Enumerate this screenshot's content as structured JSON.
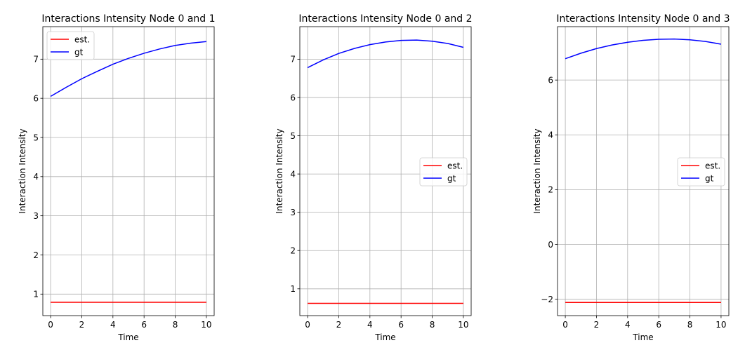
{
  "chart_data": [
    {
      "type": "line",
      "title": "Interactions Intensity Node 0 and 1",
      "xlabel": "Time",
      "ylabel": "Interaction Intensity",
      "xlim": [
        -0.5,
        10.5
      ],
      "ylim": [
        0.45,
        7.83
      ],
      "xticks": [
        0,
        2,
        4,
        6,
        8,
        10
      ],
      "yticks": [
        1,
        2,
        3,
        4,
        5,
        6,
        7
      ],
      "grid": true,
      "legend": "upper-left",
      "x": [
        0,
        1,
        2,
        3,
        4,
        5,
        6,
        7,
        8,
        9,
        10
      ],
      "series": [
        {
          "name": "est.",
          "color": "#ff0000",
          "values": [
            0.79,
            0.79,
            0.79,
            0.79,
            0.79,
            0.79,
            0.79,
            0.79,
            0.79,
            0.79,
            0.79
          ]
        },
        {
          "name": "gt",
          "color": "#0000ff",
          "values": [
            6.05,
            6.28,
            6.5,
            6.69,
            6.87,
            7.02,
            7.15,
            7.26,
            7.35,
            7.41,
            7.45
          ]
        }
      ]
    },
    {
      "type": "line",
      "title": "Interactions Intensity Node 0 and 2",
      "xlabel": "Time",
      "ylabel": "Interaction Intensity",
      "xlim": [
        -0.5,
        10.5
      ],
      "ylim": [
        0.3,
        7.85
      ],
      "xticks": [
        0,
        2,
        4,
        6,
        8,
        10
      ],
      "yticks": [
        1,
        2,
        3,
        4,
        5,
        6,
        7
      ],
      "grid": true,
      "legend": "center-right",
      "x": [
        0,
        1,
        2,
        3,
        4,
        5,
        6,
        7,
        8,
        9,
        10
      ],
      "series": [
        {
          "name": "est.",
          "color": "#ff0000",
          "values": [
            0.62,
            0.62,
            0.62,
            0.62,
            0.62,
            0.62,
            0.62,
            0.62,
            0.62,
            0.62,
            0.62
          ]
        },
        {
          "name": "gt",
          "color": "#0000ff",
          "values": [
            6.78,
            6.98,
            7.15,
            7.28,
            7.38,
            7.45,
            7.49,
            7.5,
            7.47,
            7.41,
            7.31
          ]
        }
      ]
    },
    {
      "type": "line",
      "title": "Interactions Intensity Node 0 and 3",
      "xlabel": "Time",
      "ylabel": "Interaction Intensity",
      "xlim": [
        -0.5,
        10.5
      ],
      "ylim": [
        -2.6,
        7.95
      ],
      "xticks": [
        0,
        2,
        4,
        6,
        8,
        10
      ],
      "yticks": [
        -2,
        0,
        2,
        4,
        6
      ],
      "ytick_labels": [
        "−2",
        "0",
        "2",
        "4",
        "6"
      ],
      "grid": true,
      "legend": "center-right",
      "x": [
        0,
        1,
        2,
        3,
        4,
        5,
        6,
        7,
        8,
        9,
        10
      ],
      "series": [
        {
          "name": "est.",
          "color": "#ff0000",
          "values": [
            -2.12,
            -2.12,
            -2.12,
            -2.12,
            -2.12,
            -2.12,
            -2.12,
            -2.12,
            -2.12,
            -2.12,
            -2.12
          ]
        },
        {
          "name": "gt",
          "color": "#0000ff",
          "values": [
            6.78,
            6.98,
            7.15,
            7.28,
            7.38,
            7.45,
            7.49,
            7.5,
            7.47,
            7.41,
            7.31
          ]
        }
      ]
    }
  ]
}
